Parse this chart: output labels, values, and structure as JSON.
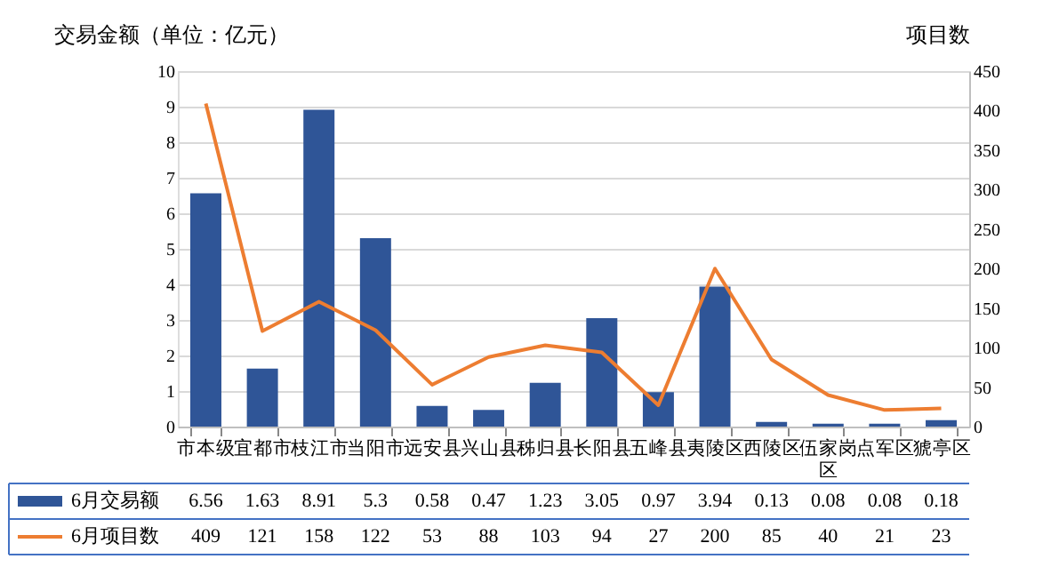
{
  "chart_data": {
    "type": "bar",
    "ylabel": "交易金额（单位：亿元）",
    "y2label": "项目数",
    "categories": [
      "市本级",
      "宜都市",
      "枝江市",
      "当阳市",
      "远安县",
      "兴山县",
      "秭归县",
      "长阳县",
      "五峰县",
      "夷陵区",
      "西陵区",
      "伍家岗区",
      "点军区",
      "猇亭区"
    ],
    "series": [
      {
        "name": "6月交易额",
        "color": "#2f5597",
        "values": [
          6.56,
          1.63,
          8.91,
          5.3,
          0.58,
          0.47,
          1.23,
          3.05,
          0.97,
          3.94,
          0.13,
          0.08,
          0.08,
          0.18
        ]
      },
      {
        "name": "6月项目数",
        "type": "line",
        "axis": "y2",
        "color": "#ed7d31",
        "values": [
          409,
          121,
          158,
          122,
          53,
          88,
          103,
          94,
          27,
          200,
          85,
          40,
          21,
          23
        ]
      }
    ],
    "ylim": [
      0,
      10
    ],
    "yticks": [
      0,
      1,
      2,
      3,
      4,
      5,
      6,
      7,
      8,
      9,
      10
    ],
    "y2lim": [
      0,
      450
    ],
    "y2ticks": [
      0,
      50,
      100,
      150,
      200,
      250,
      300,
      350,
      400,
      450
    ],
    "grid": "y",
    "legend": "bottom left",
    "data_labels": true,
    "marker": "none"
  }
}
